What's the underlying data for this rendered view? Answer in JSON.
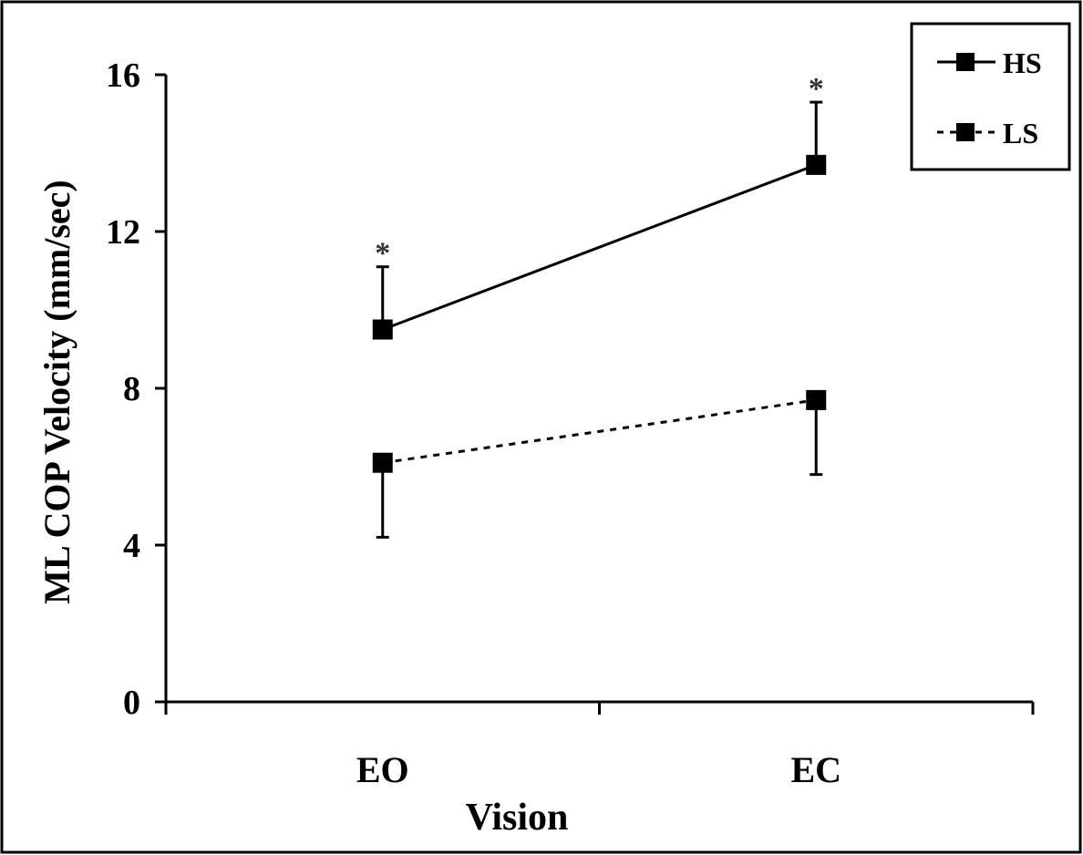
{
  "chart_data": {
    "type": "line",
    "xlabel": "Vision",
    "ylabel": "ML COP Velocity (mm/sec)",
    "categories": [
      "EO",
      "EC"
    ],
    "ylim": [
      0,
      16
    ],
    "yticks": [
      "0",
      "4",
      "8",
      "12",
      "16"
    ],
    "grid": false,
    "legend_position": "top-right",
    "series": [
      {
        "name": "HS",
        "values": [
          9.5,
          13.7
        ],
        "error_upper": [
          1.6,
          1.6
        ],
        "line_style": "solid",
        "marker": "square",
        "annotations": [
          "*",
          "*"
        ]
      },
      {
        "name": "LS",
        "values": [
          6.1,
          7.7
        ],
        "error_lower": [
          1.9,
          1.9
        ],
        "line_style": "dashed",
        "marker": "square",
        "annotations": [
          "",
          ""
        ]
      }
    ],
    "colors": {
      "line": "#000000",
      "background": "#ffffff"
    }
  }
}
